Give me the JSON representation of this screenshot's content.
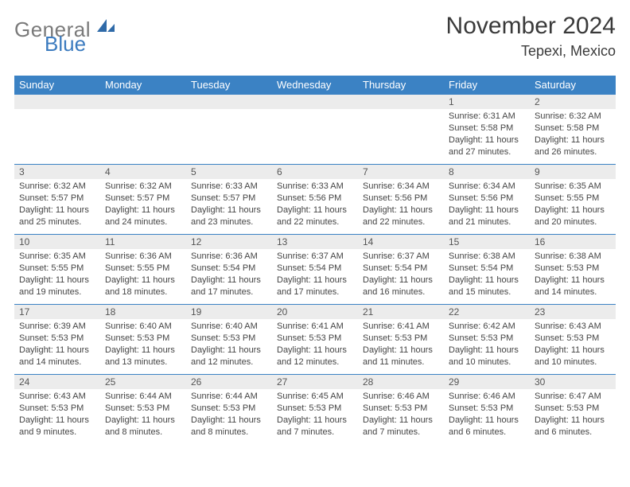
{
  "brand": {
    "general": "General",
    "blue": "Blue"
  },
  "title": "November 2024",
  "location": "Tepexi, Mexico",
  "colors": {
    "header_bg": "#3b82c4",
    "header_text": "#ffffff",
    "daynum_bg": "#ececec",
    "border": "#3b82c4",
    "logo_gray": "#7a7a7a",
    "logo_blue": "#3b7bbf"
  },
  "weekdays": [
    "Sunday",
    "Monday",
    "Tuesday",
    "Wednesday",
    "Thursday",
    "Friday",
    "Saturday"
  ],
  "weeks": [
    [
      null,
      null,
      null,
      null,
      null,
      {
        "n": "1",
        "sr": "Sunrise: 6:31 AM",
        "ss": "Sunset: 5:58 PM",
        "d1": "Daylight: 11 hours",
        "d2": "and 27 minutes."
      },
      {
        "n": "2",
        "sr": "Sunrise: 6:32 AM",
        "ss": "Sunset: 5:58 PM",
        "d1": "Daylight: 11 hours",
        "d2": "and 26 minutes."
      }
    ],
    [
      {
        "n": "3",
        "sr": "Sunrise: 6:32 AM",
        "ss": "Sunset: 5:57 PM",
        "d1": "Daylight: 11 hours",
        "d2": "and 25 minutes."
      },
      {
        "n": "4",
        "sr": "Sunrise: 6:32 AM",
        "ss": "Sunset: 5:57 PM",
        "d1": "Daylight: 11 hours",
        "d2": "and 24 minutes."
      },
      {
        "n": "5",
        "sr": "Sunrise: 6:33 AM",
        "ss": "Sunset: 5:57 PM",
        "d1": "Daylight: 11 hours",
        "d2": "and 23 minutes."
      },
      {
        "n": "6",
        "sr": "Sunrise: 6:33 AM",
        "ss": "Sunset: 5:56 PM",
        "d1": "Daylight: 11 hours",
        "d2": "and 22 minutes."
      },
      {
        "n": "7",
        "sr": "Sunrise: 6:34 AM",
        "ss": "Sunset: 5:56 PM",
        "d1": "Daylight: 11 hours",
        "d2": "and 22 minutes."
      },
      {
        "n": "8",
        "sr": "Sunrise: 6:34 AM",
        "ss": "Sunset: 5:56 PM",
        "d1": "Daylight: 11 hours",
        "d2": "and 21 minutes."
      },
      {
        "n": "9",
        "sr": "Sunrise: 6:35 AM",
        "ss": "Sunset: 5:55 PM",
        "d1": "Daylight: 11 hours",
        "d2": "and 20 minutes."
      }
    ],
    [
      {
        "n": "10",
        "sr": "Sunrise: 6:35 AM",
        "ss": "Sunset: 5:55 PM",
        "d1": "Daylight: 11 hours",
        "d2": "and 19 minutes."
      },
      {
        "n": "11",
        "sr": "Sunrise: 6:36 AM",
        "ss": "Sunset: 5:55 PM",
        "d1": "Daylight: 11 hours",
        "d2": "and 18 minutes."
      },
      {
        "n": "12",
        "sr": "Sunrise: 6:36 AM",
        "ss": "Sunset: 5:54 PM",
        "d1": "Daylight: 11 hours",
        "d2": "and 17 minutes."
      },
      {
        "n": "13",
        "sr": "Sunrise: 6:37 AM",
        "ss": "Sunset: 5:54 PM",
        "d1": "Daylight: 11 hours",
        "d2": "and 17 minutes."
      },
      {
        "n": "14",
        "sr": "Sunrise: 6:37 AM",
        "ss": "Sunset: 5:54 PM",
        "d1": "Daylight: 11 hours",
        "d2": "and 16 minutes."
      },
      {
        "n": "15",
        "sr": "Sunrise: 6:38 AM",
        "ss": "Sunset: 5:54 PM",
        "d1": "Daylight: 11 hours",
        "d2": "and 15 minutes."
      },
      {
        "n": "16",
        "sr": "Sunrise: 6:38 AM",
        "ss": "Sunset: 5:53 PM",
        "d1": "Daylight: 11 hours",
        "d2": "and 14 minutes."
      }
    ],
    [
      {
        "n": "17",
        "sr": "Sunrise: 6:39 AM",
        "ss": "Sunset: 5:53 PM",
        "d1": "Daylight: 11 hours",
        "d2": "and 14 minutes."
      },
      {
        "n": "18",
        "sr": "Sunrise: 6:40 AM",
        "ss": "Sunset: 5:53 PM",
        "d1": "Daylight: 11 hours",
        "d2": "and 13 minutes."
      },
      {
        "n": "19",
        "sr": "Sunrise: 6:40 AM",
        "ss": "Sunset: 5:53 PM",
        "d1": "Daylight: 11 hours",
        "d2": "and 12 minutes."
      },
      {
        "n": "20",
        "sr": "Sunrise: 6:41 AM",
        "ss": "Sunset: 5:53 PM",
        "d1": "Daylight: 11 hours",
        "d2": "and 12 minutes."
      },
      {
        "n": "21",
        "sr": "Sunrise: 6:41 AM",
        "ss": "Sunset: 5:53 PM",
        "d1": "Daylight: 11 hours",
        "d2": "and 11 minutes."
      },
      {
        "n": "22",
        "sr": "Sunrise: 6:42 AM",
        "ss": "Sunset: 5:53 PM",
        "d1": "Daylight: 11 hours",
        "d2": "and 10 minutes."
      },
      {
        "n": "23",
        "sr": "Sunrise: 6:43 AM",
        "ss": "Sunset: 5:53 PM",
        "d1": "Daylight: 11 hours",
        "d2": "and 10 minutes."
      }
    ],
    [
      {
        "n": "24",
        "sr": "Sunrise: 6:43 AM",
        "ss": "Sunset: 5:53 PM",
        "d1": "Daylight: 11 hours",
        "d2": "and 9 minutes."
      },
      {
        "n": "25",
        "sr": "Sunrise: 6:44 AM",
        "ss": "Sunset: 5:53 PM",
        "d1": "Daylight: 11 hours",
        "d2": "and 8 minutes."
      },
      {
        "n": "26",
        "sr": "Sunrise: 6:44 AM",
        "ss": "Sunset: 5:53 PM",
        "d1": "Daylight: 11 hours",
        "d2": "and 8 minutes."
      },
      {
        "n": "27",
        "sr": "Sunrise: 6:45 AM",
        "ss": "Sunset: 5:53 PM",
        "d1": "Daylight: 11 hours",
        "d2": "and 7 minutes."
      },
      {
        "n": "28",
        "sr": "Sunrise: 6:46 AM",
        "ss": "Sunset: 5:53 PM",
        "d1": "Daylight: 11 hours",
        "d2": "and 7 minutes."
      },
      {
        "n": "29",
        "sr": "Sunrise: 6:46 AM",
        "ss": "Sunset: 5:53 PM",
        "d1": "Daylight: 11 hours",
        "d2": "and 6 minutes."
      },
      {
        "n": "30",
        "sr": "Sunrise: 6:47 AM",
        "ss": "Sunset: 5:53 PM",
        "d1": "Daylight: 11 hours",
        "d2": "and 6 minutes."
      }
    ]
  ]
}
